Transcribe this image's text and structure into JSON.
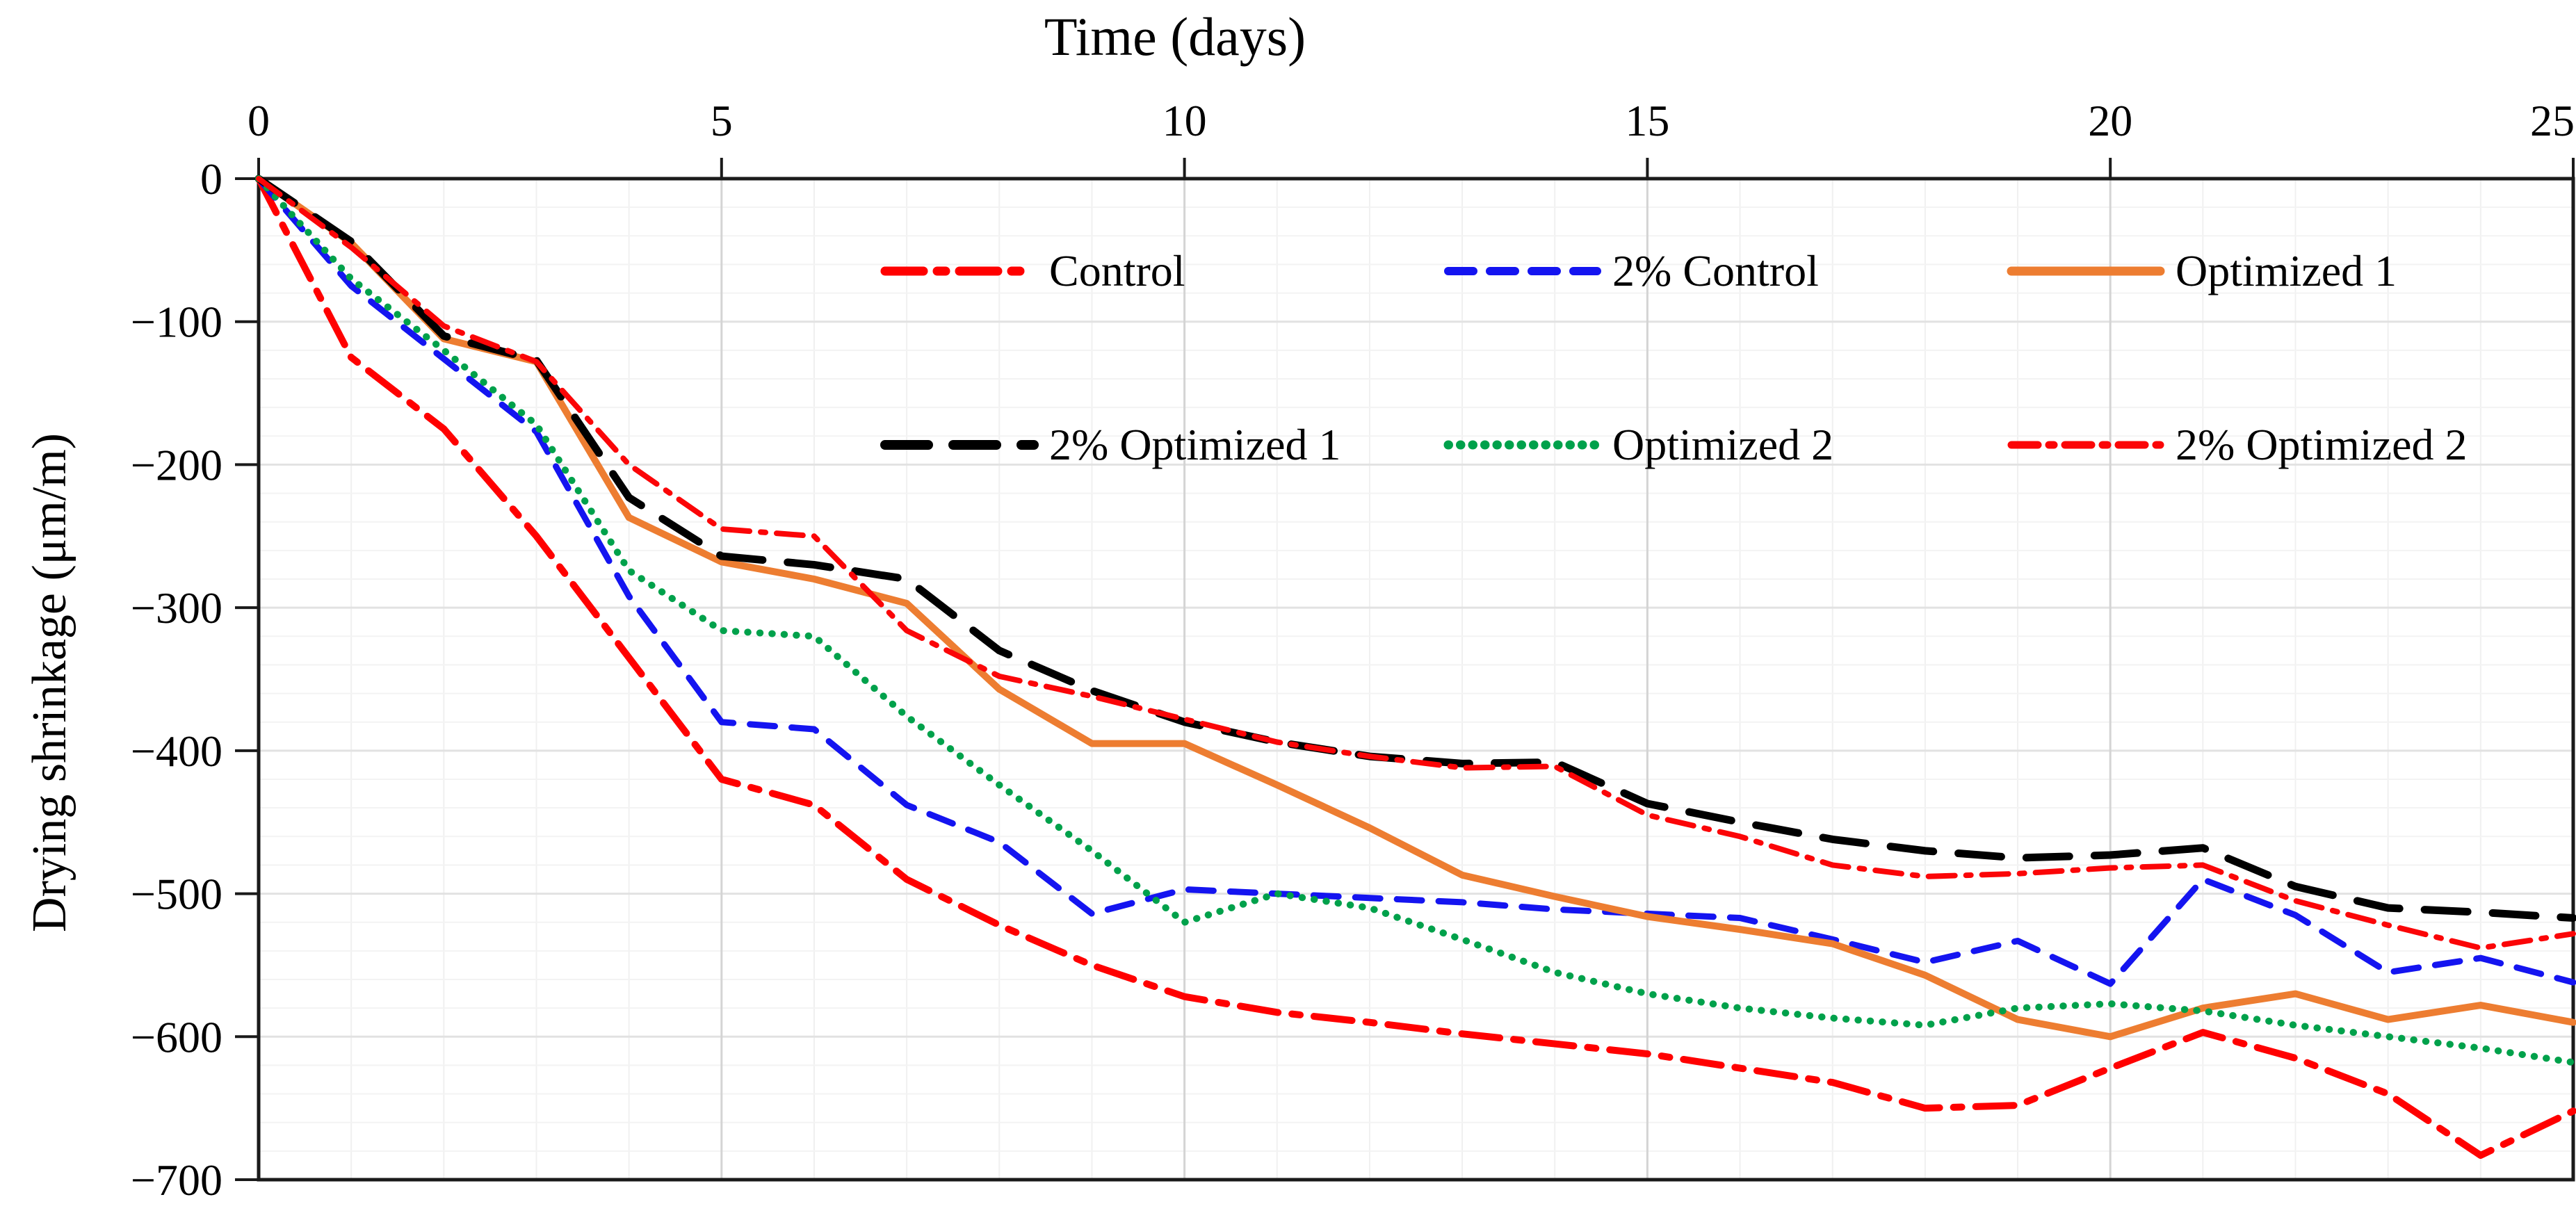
{
  "chart_data": {
    "type": "line",
    "title": "Time (days)",
    "xlabel": "Time (days)",
    "ylabel": "Drying shrinkage (μm/m)",
    "xlim": [
      0,
      25
    ],
    "ylim": [
      -700,
      0
    ],
    "grid": {
      "x_minor_every": 1,
      "x_major_every": 5,
      "y_minor_every": 20,
      "y_major_every": 100
    },
    "legend_position": "top-inside-two-rows",
    "x_tick_labels": [
      "0",
      "5",
      "10",
      "15",
      "20",
      "25"
    ],
    "x_tick_values": [
      0,
      5,
      10,
      15,
      20,
      25
    ],
    "y_tick_labels": [
      "0",
      "−100",
      "−200",
      "−300",
      "−400",
      "−500",
      "−600",
      "−700"
    ],
    "y_tick_values": [
      0,
      -100,
      -200,
      -300,
      -400,
      -500,
      -600,
      -700
    ],
    "x": [
      0,
      1,
      2,
      3,
      4,
      5,
      6,
      7,
      8,
      9,
      10,
      11,
      12,
      13,
      14,
      15,
      16,
      17,
      18,
      19,
      20,
      21,
      22,
      23,
      24,
      25
    ],
    "series": [
      {
        "name": "Control",
        "color": "#ff0000",
        "dash": "dash-dot",
        "width": 10,
        "values": [
          0,
          -125,
          -175,
          -250,
          -335,
          -420,
          -438,
          -490,
          -522,
          -550,
          -572,
          -583,
          -590,
          -598,
          -605,
          -612,
          -622,
          -632,
          -650,
          -648,
          -622,
          -597,
          -615,
          -640,
          -683,
          -652
        ]
      },
      {
        "name": "2% Control",
        "color": "#1414f0",
        "dash": "dashed",
        "width": 9,
        "values": [
          0,
          -75,
          -126,
          -177,
          -292,
          -380,
          -385,
          -438,
          -464,
          -514,
          -497,
          -500,
          -503,
          -506,
          -511,
          -514,
          -517,
          -532,
          -548,
          -533,
          -563,
          -490,
          -515,
          -555,
          -545,
          -562
        ]
      },
      {
        "name": "Optimized 1",
        "color": "#ed7d31",
        "dash": "solid",
        "width": 10,
        "values": [
          0,
          -45,
          -112,
          -128,
          -237,
          -268,
          -280,
          -297,
          -357,
          -395,
          -395,
          -424,
          -454,
          -487,
          -502,
          -516,
          -525,
          -535,
          -557,
          -588,
          -600,
          -580,
          -570,
          -588,
          -578,
          -590
        ]
      },
      {
        "name": "2% Optimized 1",
        "color": "#000000",
        "dash": "long-dash",
        "width": 11,
        "values": [
          0,
          -44,
          -110,
          -127,
          -223,
          -264,
          -270,
          -280,
          -330,
          -358,
          -380,
          -394,
          -404,
          -409,
          -408,
          -437,
          -450,
          -462,
          -470,
          -475,
          -473,
          -468,
          -495,
          -510,
          -513,
          -517
        ]
      },
      {
        "name": "Optimized 2",
        "color": "#00a14b",
        "dash": "dotted",
        "width": 10,
        "values": [
          0,
          -70,
          -120,
          -172,
          -274,
          -316,
          -320,
          -376,
          -424,
          -470,
          -520,
          -500,
          -510,
          -532,
          -555,
          -570,
          -580,
          -587,
          -592,
          -580,
          -577,
          -582,
          -592,
          -600,
          -608,
          -618
        ]
      },
      {
        "name": "2% Optimized 2",
        "color": "#fb0507",
        "dash": "dash-dot-small",
        "width": 8,
        "values": [
          0,
          -48,
          -103,
          -128,
          -200,
          -245,
          -250,
          -316,
          -348,
          -362,
          -378,
          -394,
          -404,
          -412,
          -411,
          -445,
          -460,
          -480,
          -488,
          -486,
          -482,
          -480,
          -505,
          -522,
          -538,
          -528
        ]
      }
    ]
  },
  "legend": {
    "rows": [
      [
        "Control",
        "2% Control",
        "Optimized 1"
      ],
      [
        "2% Optimized 1",
        "Optimized 2",
        "2% Optimized 2"
      ]
    ]
  }
}
